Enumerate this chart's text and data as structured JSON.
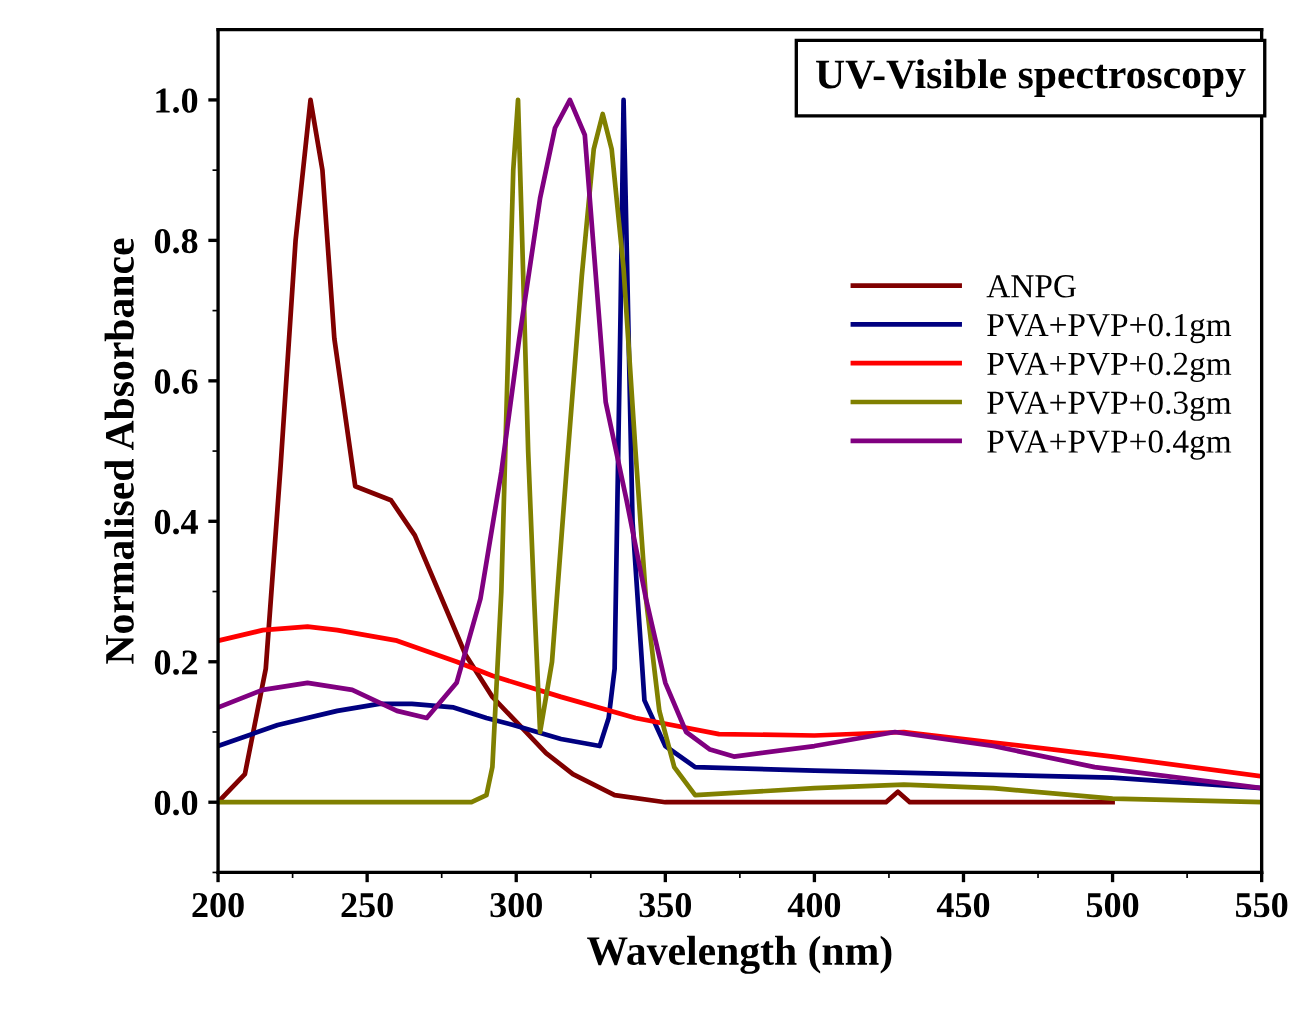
{
  "chart_data": {
    "type": "line",
    "title": "UV-Visible spectroscopy",
    "xlabel": "Wavelength (nm)",
    "ylabel": "Normalised Absorbance",
    "xlim": [
      200,
      550
    ],
    "ylim": [
      -0.1,
      1.1
    ],
    "xticks": [
      200,
      250,
      300,
      350,
      400,
      450,
      500,
      550
    ],
    "yticks": [
      {
        "value": 0,
        "label": "0.0"
      },
      {
        "value": 0.2,
        "label": "0.2"
      },
      {
        "value": 0.4,
        "label": "0.4"
      },
      {
        "value": 0.6,
        "label": "0.6"
      },
      {
        "value": 0.8,
        "label": "0.8"
      },
      {
        "value": 1,
        "label": "1.0"
      }
    ],
    "grid": false,
    "legend": "right",
    "marker": "none",
    "line_style": "solid",
    "series": [
      {
        "name": "ANPG",
        "color": "#800000",
        "x": [
          200,
          209,
          216,
          221,
          226,
          231,
          235,
          239,
          246,
          252,
          258,
          266,
          274,
          283,
          292,
          301,
          310,
          319,
          333,
          350,
          400,
          424,
          428,
          432,
          450,
          500
        ],
        "values": [
          0,
          0.04,
          0.19,
          0.48,
          0.8,
          1.0,
          0.9,
          0.66,
          0.45,
          0.44,
          0.43,
          0.38,
          0.3,
          0.21,
          0.15,
          0.11,
          0.07,
          0.04,
          0.01,
          0,
          0,
          0,
          0.015,
          0,
          0,
          0
        ]
      },
      {
        "name": "PVA+PVP+0.1gm",
        "color": "#000080",
        "x": [
          200,
          220,
          240,
          254,
          265,
          279,
          290,
          299,
          315,
          328,
          331,
          333,
          335,
          336,
          337,
          339,
          343,
          350,
          360,
          400,
          450,
          500,
          550
        ],
        "values": [
          0.08,
          0.11,
          0.13,
          0.14,
          0.14,
          0.135,
          0.12,
          0.11,
          0.09,
          0.08,
          0.12,
          0.19,
          0.7,
          1.0,
          0.8,
          0.4,
          0.145,
          0.08,
          0.05,
          0.045,
          0.04,
          0.035,
          0.02
        ]
      },
      {
        "name": "PVA+PVP+0.2gm",
        "color": "#ff0000",
        "x": [
          200,
          215,
          230,
          240,
          260,
          280,
          292,
          315,
          340,
          368,
          400,
          430,
          460,
          500,
          550
        ],
        "values": [
          0.23,
          0.245,
          0.25,
          0.245,
          0.23,
          0.2,
          0.18,
          0.15,
          0.12,
          0.097,
          0.095,
          0.1,
          0.085,
          0.065,
          0.037
        ]
      },
      {
        "name": "PVA+PVP+0.3gm",
        "color": "#808000",
        "x": [
          200,
          285,
          290,
          292,
          295,
          297,
          299,
          300.6,
          302,
          304,
          306,
          308,
          312,
          317,
          322,
          326,
          329,
          332,
          336,
          340,
          343.5,
          348,
          353,
          360,
          400,
          430,
          460,
          500,
          550
        ],
        "values": [
          0,
          0,
          0.01,
          0.05,
          0.3,
          0.6,
          0.9,
          1.0,
          0.8,
          0.5,
          0.29,
          0.1,
          0.2,
          0.48,
          0.75,
          0.93,
          0.98,
          0.93,
          0.76,
          0.5,
          0.29,
          0.13,
          0.05,
          0.01,
          0.02,
          0.025,
          0.02,
          0.005,
          0
        ]
      },
      {
        "name": "PVA+PVP+0.4gm",
        "color": "#800080",
        "x": [
          200,
          215,
          230,
          245,
          260,
          270,
          280,
          288,
          295,
          301,
          308,
          313,
          318,
          323,
          330,
          337,
          343.5,
          350,
          357,
          365,
          373,
          400,
          427,
          460,
          494,
          550
        ],
        "values": [
          0.135,
          0.16,
          0.17,
          0.16,
          0.13,
          0.12,
          0.17,
          0.29,
          0.47,
          0.66,
          0.86,
          0.96,
          1.0,
          0.95,
          0.57,
          0.43,
          0.29,
          0.17,
          0.1,
          0.075,
          0.065,
          0.08,
          0.1,
          0.08,
          0.05,
          0.02
        ]
      }
    ]
  }
}
